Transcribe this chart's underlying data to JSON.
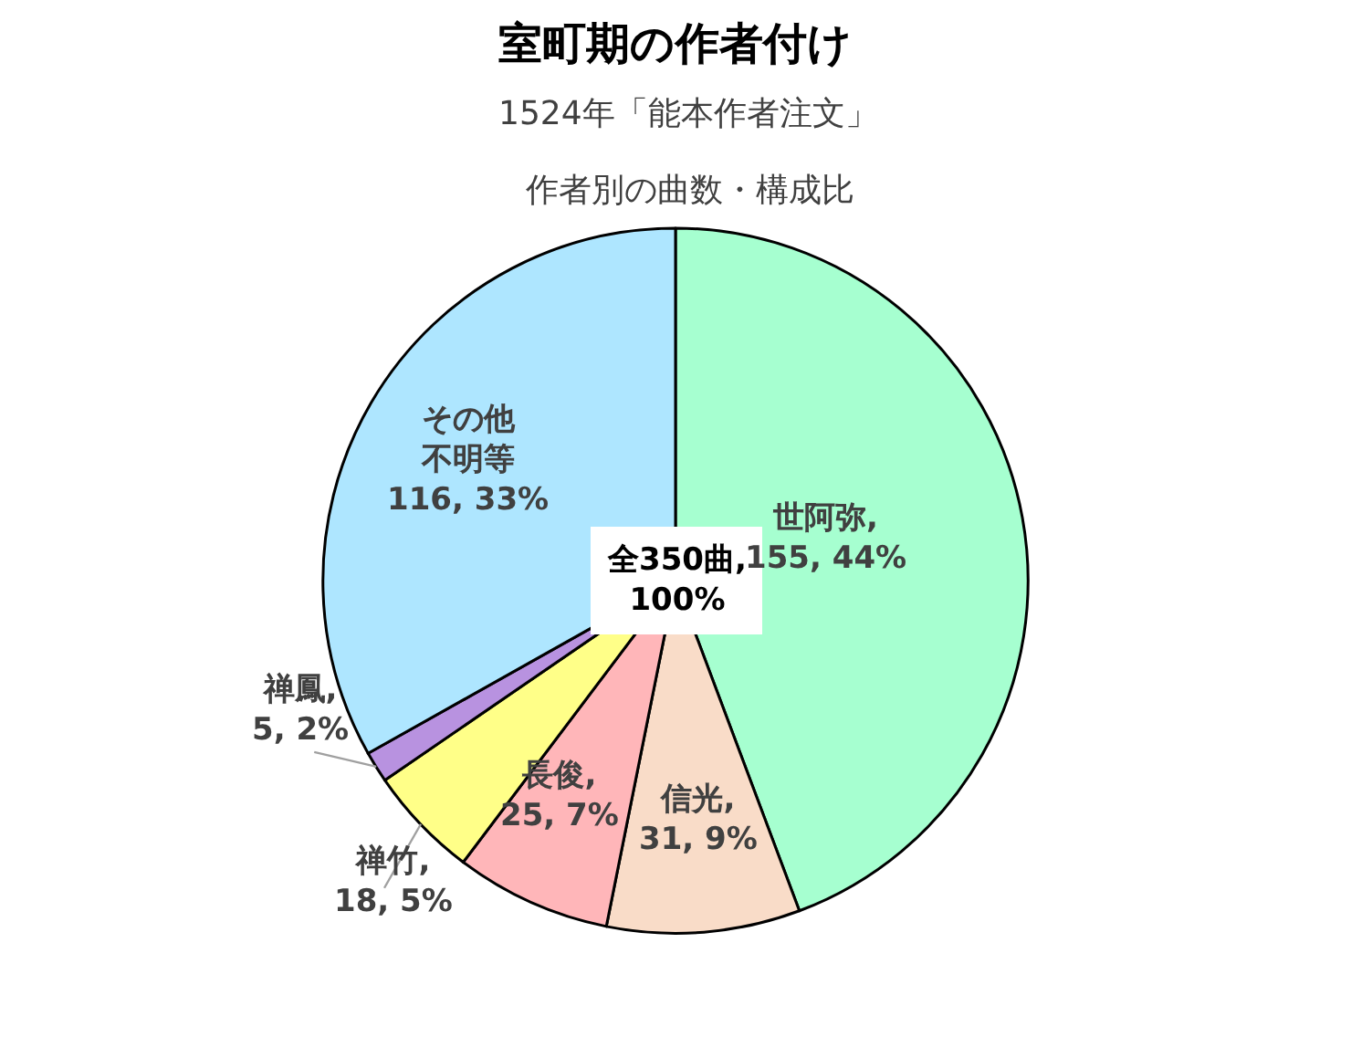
{
  "chart_data": {
    "type": "pie",
    "title": "室町期の作者付け",
    "subtitle": "1524年「能本作者注文」",
    "values": [
      155,
      31,
      25,
      18,
      5,
      116
    ],
    "colors": [
      "#a6ffd0",
      "#f9dcc8",
      "#ffb6b9",
      "#ffff88",
      "#b892e0",
      "#aee6ff"
    ],
    "value_labels": [
      "世阿弥,\n155, 44%",
      "信光,\n31, 9%",
      "長俊,\n25, 7%",
      "禅竹,\n18, 5%",
      "禅鳳,\n5, 2%",
      "その他不明等\n116, 33%"
    ],
    "annotations": [
      "作者別の曲数・構成比",
      "全350曲,\n100%"
    ],
    "legend": false
  }
}
